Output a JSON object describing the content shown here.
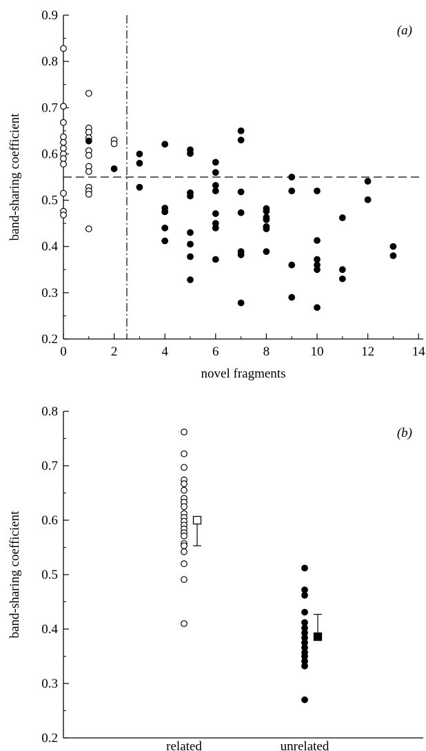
{
  "chart_data": [
    {
      "type": "scatter",
      "panel_label": "(a)",
      "xlabel": "novel fragments",
      "ylabel": "band-sharing coefficient",
      "xlim": [
        0,
        15
      ],
      "ylim": [
        0.2,
        0.9
      ],
      "x_ticks": [
        0,
        2,
        4,
        6,
        8,
        10,
        12,
        14
      ],
      "y_ticks": [
        0.2,
        0.3,
        0.4,
        0.5,
        0.6,
        0.7,
        0.8,
        0.9
      ],
      "x_tick_labels": [
        "0",
        "2",
        "4",
        "6",
        "8",
        "10",
        "12",
        "14"
      ],
      "y_tick_labels": [
        "0.2",
        "0.3",
        "0.4",
        "0.5",
        "0.6",
        "0.7",
        "0.8",
        "0.9"
      ],
      "grid": false,
      "reference_lines": {
        "horizontal_dashed_y": 0.55,
        "vertical_dashdot_x": 2.5
      },
      "series": [
        {
          "marker": "open-circle",
          "points": [
            [
              0,
              0.828
            ],
            [
              0,
              0.703
            ],
            [
              0,
              0.668
            ],
            [
              0,
              0.637
            ],
            [
              0,
              0.625
            ],
            [
              0,
              0.612
            ],
            [
              0,
              0.6
            ],
            [
              0,
              0.59
            ],
            [
              0,
              0.578
            ],
            [
              0,
              0.515
            ],
            [
              0,
              0.476
            ],
            [
              0,
              0.468
            ],
            [
              1,
              0.731
            ],
            [
              1,
              0.656
            ],
            [
              1,
              0.647
            ],
            [
              1,
              0.635
            ],
            [
              1,
              0.607
            ],
            [
              1,
              0.597
            ],
            [
              1,
              0.573
            ],
            [
              1,
              0.562
            ],
            [
              1,
              0.528
            ],
            [
              1,
              0.52
            ],
            [
              1,
              0.513
            ],
            [
              1,
              0.438
            ],
            [
              2,
              0.63
            ],
            [
              2,
              0.622
            ]
          ]
        },
        {
          "marker": "filled-circle",
          "points": [
            [
              1,
              0.628
            ],
            [
              2,
              0.568
            ],
            [
              3,
              0.6
            ],
            [
              3,
              0.58
            ],
            [
              3,
              0.528
            ],
            [
              4,
              0.621
            ],
            [
              4,
              0.483
            ],
            [
              4,
              0.475
            ],
            [
              4,
              0.44
            ],
            [
              4,
              0.412
            ],
            [
              5,
              0.609
            ],
            [
              5,
              0.601
            ],
            [
              5,
              0.516
            ],
            [
              5,
              0.509
            ],
            [
              5,
              0.43
            ],
            [
              5,
              0.405
            ],
            [
              5,
              0.378
            ],
            [
              5,
              0.328
            ],
            [
              6,
              0.582
            ],
            [
              6,
              0.56
            ],
            [
              6,
              0.532
            ],
            [
              6,
              0.52
            ],
            [
              6,
              0.471
            ],
            [
              6,
              0.45
            ],
            [
              6,
              0.44
            ],
            [
              6,
              0.372
            ],
            [
              7,
              0.65
            ],
            [
              7,
              0.63
            ],
            [
              7,
              0.518
            ],
            [
              7,
              0.473
            ],
            [
              7,
              0.389
            ],
            [
              7,
              0.382
            ],
            [
              7,
              0.278
            ],
            [
              8,
              0.482
            ],
            [
              8,
              0.476
            ],
            [
              8,
              0.463
            ],
            [
              8,
              0.458
            ],
            [
              8,
              0.443
            ],
            [
              8,
              0.438
            ],
            [
              8,
              0.389
            ],
            [
              9,
              0.55
            ],
            [
              9,
              0.52
            ],
            [
              9,
              0.36
            ],
            [
              9,
              0.29
            ],
            [
              10,
              0.52
            ],
            [
              10,
              0.413
            ],
            [
              10,
              0.372
            ],
            [
              10,
              0.36
            ],
            [
              10,
              0.35
            ],
            [
              10,
              0.268
            ],
            [
              11,
              0.462
            ],
            [
              11,
              0.35
            ],
            [
              11,
              0.33
            ],
            [
              12,
              0.541
            ],
            [
              12,
              0.501
            ],
            [
              13,
              0.4
            ],
            [
              13,
              0.38
            ]
          ]
        }
      ]
    },
    {
      "type": "scatter",
      "panel_label": "(b)",
      "xlabel": "",
      "ylabel": "band-sharing coefficient",
      "categories": [
        "related",
        "unrelated"
      ],
      "ylim": [
        0.2,
        0.8
      ],
      "y_ticks": [
        0.2,
        0.3,
        0.4,
        0.5,
        0.6,
        0.7,
        0.8
      ],
      "y_tick_labels": [
        "0.2",
        "0.3",
        "0.4",
        "0.5",
        "0.6",
        "0.7",
        "0.8"
      ],
      "grid": false,
      "series": [
        {
          "category": "related",
          "marker": "open-circle",
          "values": [
            0.762,
            0.722,
            0.697,
            0.674,
            0.667,
            0.655,
            0.64,
            0.633,
            0.625,
            0.612,
            0.605,
            0.598,
            0.591,
            0.584,
            0.577,
            0.571,
            0.557,
            0.553,
            0.542,
            0.52,
            0.491,
            0.41
          ],
          "mean": 0.6,
          "mean_marker": "open-square",
          "error_bar": 0.047,
          "error_direction": "down"
        },
        {
          "category": "unrelated",
          "marker": "filled-circle",
          "values": [
            0.512,
            0.472,
            0.462,
            0.431,
            0.412,
            0.402,
            0.393,
            0.384,
            0.375,
            0.366,
            0.357,
            0.35,
            0.341,
            0.332,
            0.27
          ],
          "mean": 0.386,
          "mean_marker": "filled-square",
          "error_bar": 0.041,
          "error_direction": "up"
        }
      ]
    }
  ]
}
